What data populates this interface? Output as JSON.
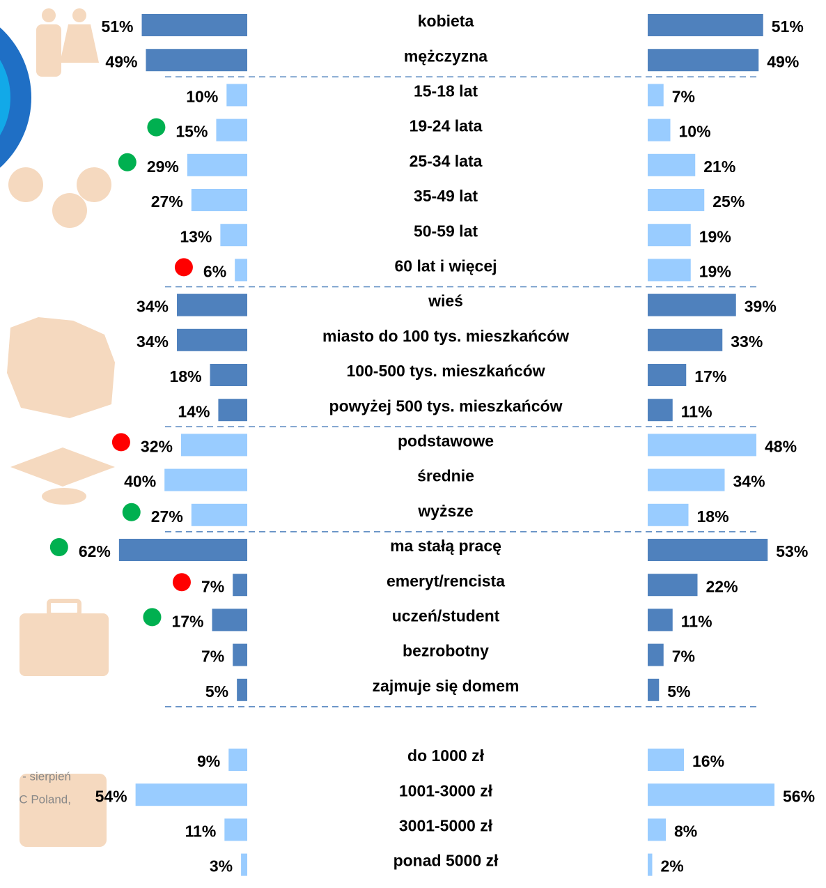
{
  "chart_data": {
    "type": "butterfly",
    "categories": [
      "kobieta",
      "mężczyzna",
      "15-18 lat",
      "19-24 lata",
      "25-34 lata",
      "35-49 lat",
      "50-59 lat",
      "60 lat i więcej",
      "wieś",
      "miasto do 100 tys. mieszkańców",
      "100-500 tys. mieszkańców",
      "powyżej 500 tys. mieszkańców",
      "podstawowe",
      "średnie",
      "wyższe",
      "ma stałą pracę",
      "emeryt/rencista",
      "uczeń/student",
      "bezrobotny",
      "zajmuje się domem",
      "do 1000 zł",
      "1001-3000 zł",
      "3001-5000 zł",
      "ponad 5000 zł"
    ],
    "bar_colors": [
      "#4f81bd",
      "#4f81bd",
      "#99ccff",
      "#99ccff",
      "#99ccff",
      "#99ccff",
      "#99ccff",
      "#99ccff",
      "#4f81bd",
      "#4f81bd",
      "#4f81bd",
      "#4f81bd",
      "#99ccff",
      "#99ccff",
      "#99ccff",
      "#4f81bd",
      "#4f81bd",
      "#4f81bd",
      "#4f81bd",
      "#4f81bd",
      "#99ccff",
      "#99ccff",
      "#99ccff",
      "#99ccff"
    ],
    "series": [
      {
        "values": [
          51,
          49,
          10,
          15,
          29,
          27,
          13,
          6,
          34,
          34,
          18,
          14,
          32,
          40,
          27,
          62,
          7,
          17,
          7,
          5,
          9,
          54,
          11,
          3
        ],
        "value_labels": [
          "51%",
          "49%",
          "10%",
          "15%",
          "29%",
          "27%",
          "13%",
          "6%",
          "34%",
          "34%",
          "18%",
          "14%",
          "32%",
          "40%",
          "27%",
          "62%",
          "7%",
          "17%",
          "7%",
          "5%",
          "9%",
          "54%",
          "11%",
          "3%"
        ],
        "dots": [
          null,
          null,
          null,
          "#00b050",
          "#00b050",
          null,
          null,
          "#ff0000",
          null,
          null,
          null,
          null,
          "#ff0000",
          null,
          "#00b050",
          "#00b050",
          "#ff0000",
          "#00b050",
          null,
          null,
          null,
          null,
          null,
          null
        ]
      },
      {
        "values": [
          51,
          49,
          7,
          10,
          21,
          25,
          19,
          19,
          39,
          33,
          17,
          11,
          48,
          34,
          18,
          53,
          22,
          11,
          7,
          5,
          16,
          56,
          8,
          2
        ],
        "value_labels": [
          "51%",
          "49%",
          "7%",
          "10%",
          "21%",
          "25%",
          "19%",
          "19%",
          "39%",
          "33%",
          "17%",
          "11%",
          "48%",
          "34%",
          "18%",
          "53%",
          "22%",
          "11%",
          "7%",
          "5%",
          "16%",
          "56%",
          "8%",
          "2%"
        ]
      }
    ],
    "notes": [
      "- sierpień",
      "C Poland,"
    ]
  }
}
